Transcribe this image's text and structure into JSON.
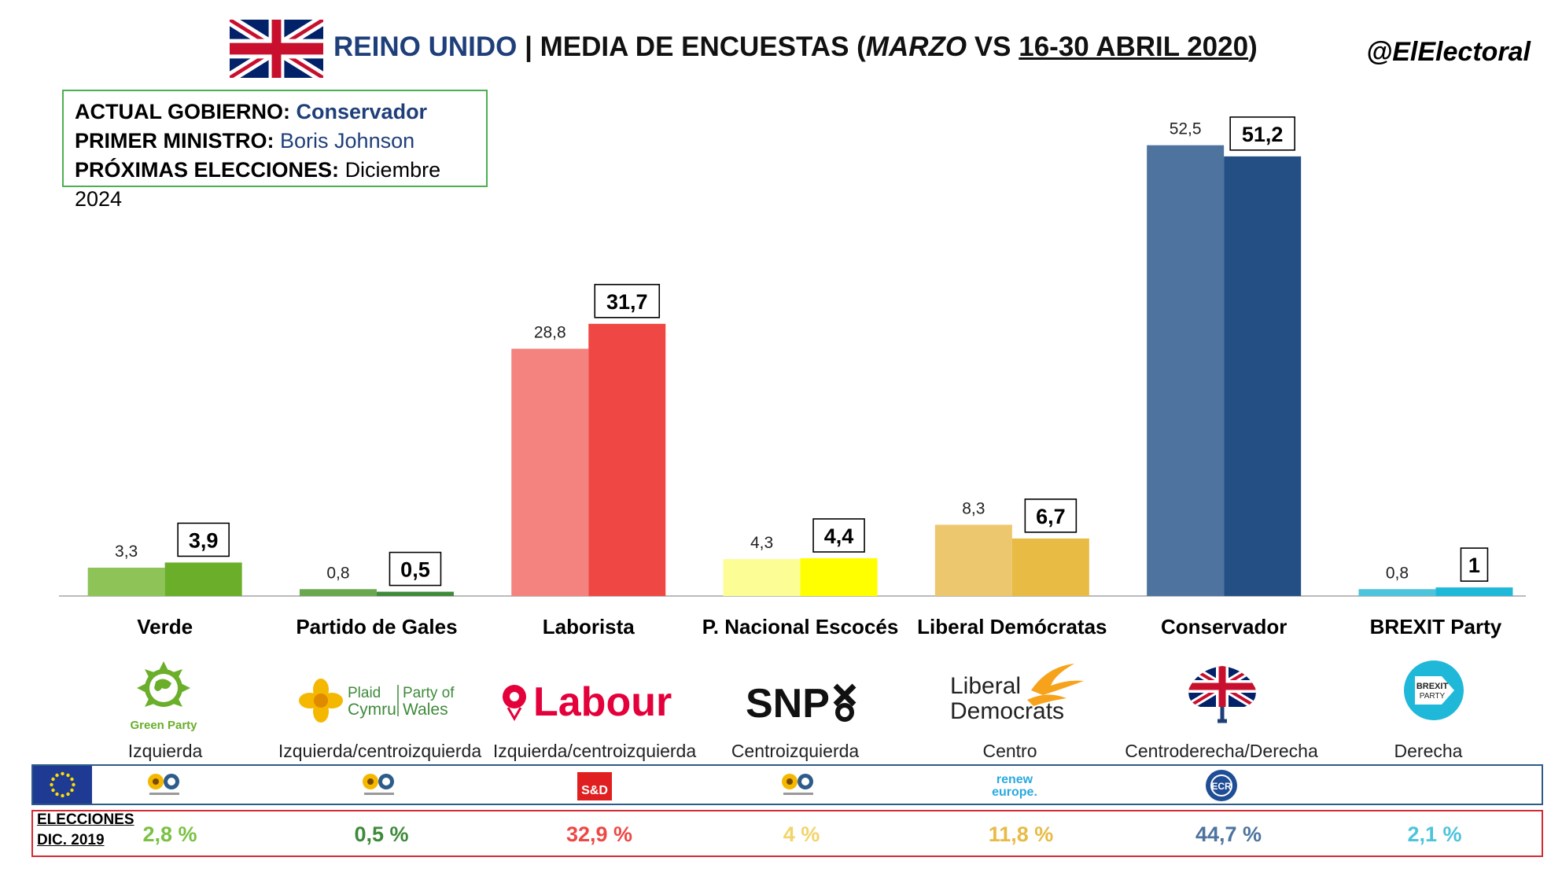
{
  "header": {
    "country": "REINO UNIDO",
    "separator": " | MEDIA DE ENCUESTAS (",
    "period1": "MARZO",
    "vs": " VS ",
    "period2": "16-30 ABRIL 2020",
    "close": ")",
    "handle": "@ElElectoral"
  },
  "info": {
    "gov_key": "ACTUAL GOBIERNO:",
    "gov_val": "Conservador",
    "pm_key": "PRIMER MINISTRO:",
    "pm_val": "Boris Johnson",
    "next_key": "PRÓXIMAS ELECCIONES:",
    "next_val": "Diciembre 2024"
  },
  "chart_data": {
    "type": "bar",
    "categories": [
      "Verde",
      "Partido de Gales",
      "Laborista",
      "P. Nacional Escocés",
      "Liberal Demócratas",
      "Conservador",
      "BREXIT Party"
    ],
    "series": [
      {
        "values": [
          3.3,
          0.8,
          28.8,
          4.3,
          8.3,
          52.5,
          0.8
        ]
      },
      {
        "values": [
          3.9,
          0.5,
          31.7,
          4.4,
          6.7,
          51.2,
          1
        ]
      }
    ],
    "value_labels": [
      [
        "3,3",
        "0,8",
        "28,8",
        "4,3",
        "8,3",
        "52,5",
        "0,8"
      ],
      [
        "3,9",
        "0,5",
        "31,7",
        "4,4",
        "6,7",
        "51,2",
        "1"
      ]
    ],
    "colors_march": [
      "#8dc357",
      "#6aa84f",
      "#f4827f",
      "#fdfd96",
      "#edc76e",
      "#4d739e",
      "#4ec3dc"
    ],
    "colors_april": [
      "#6aae2a",
      "#3f8a3a",
      "#ef4744",
      "#ffff00",
      "#e8bb45",
      "#244f85",
      "#1fb8d9"
    ],
    "ylim": [
      0,
      55
    ],
    "grid": false
  },
  "logos": [
    "Green Party",
    "Plaid Cymru | Party of Wales",
    "Labour",
    "SNP",
    "Liberal Democrats",
    "Conservatives",
    "BREXIT PARTY"
  ],
  "ideologies": [
    "Izquierda",
    "Izquierda/centroizquierda",
    "Izquierda/centroizquierda",
    "Centroizquierda",
    "Centro",
    "Centroderecha/Derecha",
    "Derecha"
  ],
  "eu_groups": [
    "Greens/EFA",
    "Greens/EFA",
    "S&D",
    "Greens/EFA",
    "renew europe.",
    "ECR",
    ""
  ],
  "elections": {
    "label_line1": "ELECCIONES",
    "label_line2": "DIC. 2019",
    "values": [
      "2,8 %",
      "0,5 %",
      "32,9 %",
      "4 %",
      "11,8 %",
      "44,7 %",
      "2,1 %"
    ],
    "colors": [
      "#7ac143",
      "#3f8a3a",
      "#ef4744",
      "#f2d46b",
      "#e8bb45",
      "#4d739e",
      "#4ec3dc"
    ]
  }
}
